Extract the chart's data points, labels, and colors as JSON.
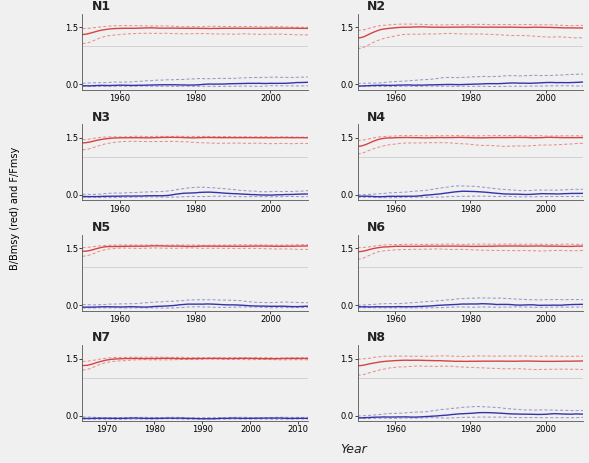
{
  "panels": [
    {
      "label": "N1",
      "xmin": 1950,
      "xmax": 2010,
      "xticks": [
        1960,
        1980,
        2000
      ],
      "row": 0,
      "col": 0,
      "red_c": [
        1.3,
        1.45,
        1.47,
        1.48,
        1.48,
        1.47,
        1.47,
        1.47,
        1.47,
        1.47,
        1.47,
        1.47
      ],
      "red_u": [
        1.45,
        1.53,
        1.54,
        1.54,
        1.53,
        1.52,
        1.52,
        1.52,
        1.52,
        1.51,
        1.51,
        1.5
      ],
      "red_l": [
        1.05,
        1.28,
        1.32,
        1.34,
        1.34,
        1.33,
        1.33,
        1.32,
        1.32,
        1.32,
        1.31,
        1.3
      ],
      "blue_c": [
        -0.04,
        -0.03,
        -0.03,
        -0.02,
        -0.02,
        -0.01,
        0.0,
        0.01,
        0.02,
        0.03,
        0.04,
        0.05
      ],
      "blue_u": [
        0.02,
        0.04,
        0.06,
        0.08,
        0.12,
        0.14,
        0.15,
        0.16,
        0.17,
        0.18,
        0.19,
        0.2
      ],
      "blue_l": [
        -0.05,
        -0.05,
        -0.05,
        -0.05,
        -0.05,
        -0.05,
        -0.05,
        -0.05,
        -0.05,
        -0.04,
        -0.04,
        -0.04
      ]
    },
    {
      "label": "N2",
      "xmin": 1950,
      "xmax": 2010,
      "xticks": [
        1960,
        1980,
        2000
      ],
      "row": 0,
      "col": 1,
      "red_c": [
        1.2,
        1.45,
        1.5,
        1.5,
        1.5,
        1.5,
        1.5,
        1.5,
        1.5,
        1.5,
        1.48,
        1.48
      ],
      "red_u": [
        1.4,
        1.55,
        1.58,
        1.57,
        1.57,
        1.57,
        1.57,
        1.57,
        1.57,
        1.57,
        1.55,
        1.55
      ],
      "red_l": [
        0.9,
        1.2,
        1.3,
        1.32,
        1.33,
        1.33,
        1.32,
        1.3,
        1.28,
        1.26,
        1.24,
        1.22
      ],
      "blue_c": [
        -0.04,
        -0.03,
        -0.02,
        -0.02,
        -0.01,
        0.0,
        0.01,
        0.02,
        0.03,
        0.04,
        0.05,
        0.06
      ],
      "blue_u": [
        0.02,
        0.05,
        0.08,
        0.12,
        0.16,
        0.18,
        0.2,
        0.22,
        0.23,
        0.24,
        0.25,
        0.26
      ],
      "blue_l": [
        -0.05,
        -0.05,
        -0.05,
        -0.05,
        -0.05,
        -0.05,
        -0.05,
        -0.05,
        -0.05,
        -0.04,
        -0.04,
        -0.04
      ]
    },
    {
      "label": "N3",
      "xmin": 1950,
      "xmax": 2010,
      "xticks": [
        1960,
        1980,
        2000
      ],
      "row": 1,
      "col": 0,
      "red_c": [
        1.35,
        1.48,
        1.5,
        1.5,
        1.5,
        1.5,
        1.5,
        1.5,
        1.5,
        1.5,
        1.5,
        1.5
      ],
      "red_u": [
        1.45,
        1.52,
        1.53,
        1.53,
        1.53,
        1.53,
        1.53,
        1.53,
        1.53,
        1.52,
        1.52,
        1.52
      ],
      "red_l": [
        1.15,
        1.35,
        1.4,
        1.4,
        1.4,
        1.38,
        1.36,
        1.35,
        1.35,
        1.35,
        1.35,
        1.35
      ],
      "blue_c": [
        -0.05,
        -0.04,
        -0.04,
        -0.03,
        -0.02,
        0.05,
        0.08,
        0.04,
        0.01,
        0.0,
        0.01,
        0.02
      ],
      "blue_u": [
        0.0,
        0.03,
        0.05,
        0.08,
        0.1,
        0.18,
        0.2,
        0.15,
        0.1,
        0.08,
        0.09,
        0.1
      ],
      "blue_l": [
        -0.07,
        -0.07,
        -0.07,
        -0.06,
        -0.06,
        -0.05,
        -0.04,
        -0.04,
        -0.05,
        -0.05,
        -0.05,
        -0.05
      ]
    },
    {
      "label": "N4",
      "xmin": 1950,
      "xmax": 2010,
      "xticks": [
        1960,
        1980,
        2000
      ],
      "row": 1,
      "col": 1,
      "red_c": [
        1.25,
        1.48,
        1.5,
        1.5,
        1.5,
        1.5,
        1.5,
        1.5,
        1.5,
        1.5,
        1.5,
        1.5
      ],
      "red_u": [
        1.42,
        1.53,
        1.55,
        1.55,
        1.55,
        1.55,
        1.55,
        1.55,
        1.55,
        1.55,
        1.55,
        1.55
      ],
      "red_l": [
        1.05,
        1.28,
        1.35,
        1.37,
        1.37,
        1.35,
        1.3,
        1.28,
        1.28,
        1.3,
        1.33,
        1.35
      ],
      "blue_c": [
        -0.05,
        -0.04,
        -0.04,
        -0.03,
        0.02,
        0.1,
        0.08,
        0.03,
        0.01,
        0.02,
        0.03,
        0.04
      ],
      "blue_u": [
        0.0,
        0.03,
        0.06,
        0.1,
        0.18,
        0.24,
        0.2,
        0.14,
        0.1,
        0.12,
        0.13,
        0.14
      ],
      "blue_l": [
        -0.07,
        -0.07,
        -0.07,
        -0.06,
        -0.06,
        -0.04,
        -0.04,
        -0.05,
        -0.05,
        -0.05,
        -0.05,
        -0.05
      ]
    },
    {
      "label": "N5",
      "xmin": 1950,
      "xmax": 2010,
      "xticks": [
        1960,
        1980,
        2000
      ],
      "row": 2,
      "col": 0,
      "red_c": [
        1.4,
        1.54,
        1.55,
        1.55,
        1.55,
        1.55,
        1.55,
        1.55,
        1.55,
        1.55,
        1.55,
        1.55
      ],
      "red_u": [
        1.5,
        1.57,
        1.58,
        1.58,
        1.58,
        1.58,
        1.58,
        1.58,
        1.58,
        1.58,
        1.58,
        1.58
      ],
      "red_l": [
        1.25,
        1.48,
        1.5,
        1.5,
        1.5,
        1.5,
        1.5,
        1.49,
        1.49,
        1.48,
        1.47,
        1.46
      ],
      "blue_c": [
        -0.05,
        -0.04,
        -0.04,
        -0.04,
        -0.03,
        0.02,
        0.04,
        0.01,
        -0.01,
        -0.02,
        -0.03,
        -0.03
      ],
      "blue_u": [
        0.0,
        0.02,
        0.04,
        0.07,
        0.1,
        0.14,
        0.15,
        0.12,
        0.08,
        0.07,
        0.07,
        0.07
      ],
      "blue_l": [
        -0.07,
        -0.07,
        -0.07,
        -0.07,
        -0.07,
        -0.06,
        -0.05,
        -0.05,
        -0.05,
        -0.06,
        -0.06,
        -0.06
      ]
    },
    {
      "label": "N6",
      "xmin": 1950,
      "xmax": 2010,
      "xticks": [
        1960,
        1980,
        2000
      ],
      "row": 2,
      "col": 1,
      "red_c": [
        1.4,
        1.53,
        1.55,
        1.55,
        1.55,
        1.55,
        1.55,
        1.55,
        1.55,
        1.55,
        1.55,
        1.55
      ],
      "red_u": [
        1.5,
        1.58,
        1.6,
        1.6,
        1.6,
        1.6,
        1.6,
        1.6,
        1.6,
        1.6,
        1.6,
        1.6
      ],
      "red_l": [
        1.2,
        1.42,
        1.46,
        1.47,
        1.47,
        1.46,
        1.45,
        1.44,
        1.43,
        1.43,
        1.43,
        1.43
      ],
      "blue_c": [
        -0.05,
        -0.04,
        -0.04,
        -0.03,
        0.0,
        0.03,
        0.04,
        0.02,
        0.0,
        0.0,
        0.01,
        0.02
      ],
      "blue_u": [
        0.0,
        0.03,
        0.05,
        0.08,
        0.12,
        0.17,
        0.2,
        0.18,
        0.15,
        0.14,
        0.15,
        0.16
      ],
      "blue_l": [
        -0.07,
        -0.07,
        -0.07,
        -0.06,
        -0.06,
        -0.05,
        -0.05,
        -0.05,
        -0.05,
        -0.05,
        -0.05,
        -0.05
      ]
    },
    {
      "label": "N7",
      "xmin": 1965,
      "xmax": 2012,
      "xticks": [
        1970,
        1980,
        1990,
        2000,
        2010
      ],
      "row": 3,
      "col": 0,
      "red_c": [
        1.3,
        1.48,
        1.5,
        1.5,
        1.5,
        1.5,
        1.5,
        1.5,
        1.5,
        1.5,
        1.5
      ],
      "red_u": [
        1.42,
        1.52,
        1.53,
        1.53,
        1.53,
        1.52,
        1.52,
        1.52,
        1.52,
        1.52,
        1.52
      ],
      "red_l": [
        1.18,
        1.42,
        1.46,
        1.47,
        1.47,
        1.47,
        1.47,
        1.47,
        1.47,
        1.47,
        1.47
      ],
      "blue_c": [
        -0.07,
        -0.07,
        -0.07,
        -0.07,
        -0.07,
        -0.07,
        -0.07,
        -0.07,
        -0.07,
        -0.07,
        -0.07
      ],
      "blue_u": [
        -0.04,
        -0.05,
        -0.05,
        -0.05,
        -0.05,
        -0.05,
        -0.05,
        -0.05,
        -0.05,
        -0.05,
        -0.05
      ],
      "blue_l": [
        -0.09,
        -0.09,
        -0.09,
        -0.09,
        -0.09,
        -0.09,
        -0.09,
        -0.09,
        -0.09,
        -0.09,
        -0.09
      ]
    },
    {
      "label": "N8",
      "xmin": 1950,
      "xmax": 2010,
      "xticks": [
        1960,
        1980,
        2000
      ],
      "row": 3,
      "col": 1,
      "red_c": [
        1.3,
        1.42,
        1.45,
        1.45,
        1.44,
        1.43,
        1.43,
        1.43,
        1.43,
        1.43,
        1.43,
        1.43
      ],
      "red_u": [
        1.48,
        1.55,
        1.56,
        1.56,
        1.56,
        1.56,
        1.56,
        1.56,
        1.56,
        1.56,
        1.56,
        1.56
      ],
      "red_l": [
        1.05,
        1.22,
        1.28,
        1.3,
        1.3,
        1.28,
        1.25,
        1.23,
        1.22,
        1.22,
        1.22,
        1.22
      ],
      "blue_c": [
        -0.05,
        -0.04,
        -0.04,
        -0.03,
        0.0,
        0.05,
        0.08,
        0.06,
        0.03,
        0.03,
        0.04,
        0.04
      ],
      "blue_u": [
        0.0,
        0.03,
        0.06,
        0.1,
        0.15,
        0.22,
        0.25,
        0.2,
        0.15,
        0.14,
        0.14,
        0.14
      ],
      "blue_l": [
        -0.07,
        -0.07,
        -0.07,
        -0.06,
        -0.06,
        -0.05,
        -0.04,
        -0.04,
        -0.05,
        -0.05,
        -0.05,
        -0.05
      ]
    }
  ],
  "red_color": "#e8908c",
  "red_center_color": "#d44444",
  "blue_color": "#9999cc",
  "blue_center_color": "#3333aa",
  "bg_color": "#f0f0f0",
  "ylabel": "B/Bmsy (red) and F/Fmsy",
  "xlabel": "Year",
  "ylim": [
    -0.15,
    1.85
  ],
  "yticks": [
    0.0,
    1.5
  ],
  "hline_y": 1.0
}
